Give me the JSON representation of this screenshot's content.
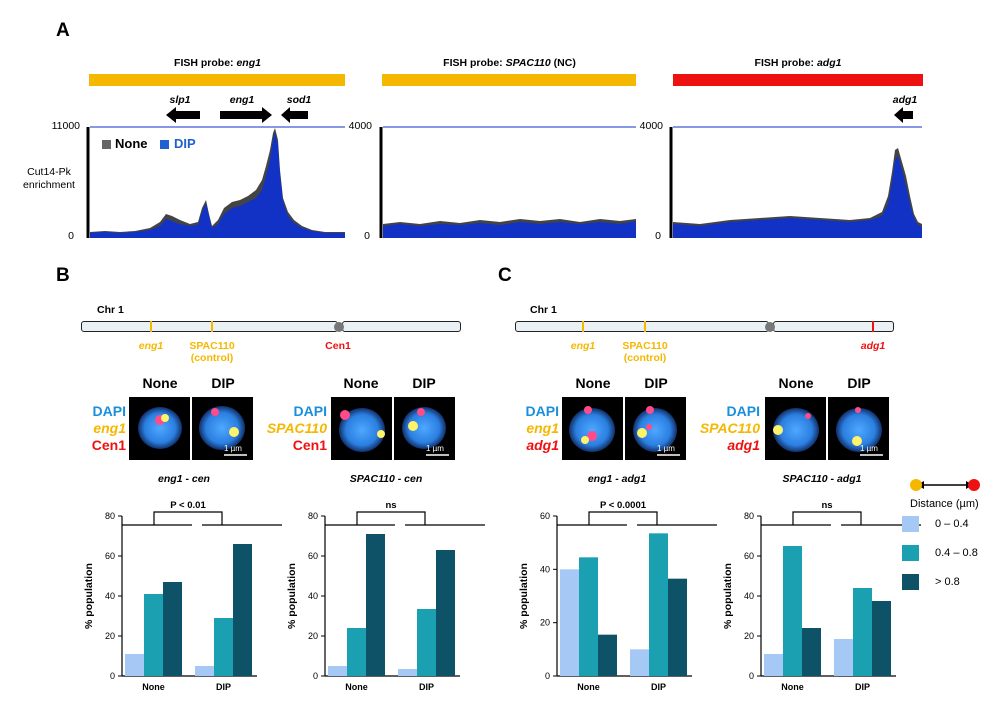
{
  "panel_labels": {
    "a": "A",
    "b": "B",
    "c": "C"
  },
  "colors": {
    "blue_track": "#1132c4",
    "grey_track": "#555555",
    "orange": "#f5b800",
    "red": "#ee1111",
    "light": "#a6c8f5",
    "mid": "#1aa0b0",
    "dark": "#0d5266"
  },
  "panel_a": {
    "ylabel": "Cut14-Pk\nenrichment",
    "legend": {
      "none": "None",
      "dip": "DIP"
    },
    "tracks": [
      {
        "title_prefix": "FISH probe: ",
        "title_italic": "eng1",
        "title_suffix": "",
        "ymax": "11000",
        "ymin": "0",
        "genes": [
          "slp1",
          "eng1",
          "sod1"
        ]
      },
      {
        "title_prefix": "FISH probe: ",
        "title_italic": "SPAC110",
        "title_suffix": " (NC)",
        "ymax": "4000",
        "ymin": "0",
        "genes": []
      },
      {
        "title_prefix": "FISH probe: ",
        "title_italic": "adg1",
        "title_suffix": "",
        "ymax": "4000",
        "ymin": "0",
        "genes": [
          "adg1"
        ]
      }
    ]
  },
  "panel_b": {
    "chr_label": "Chr 1",
    "chr_marks": {
      "eng1": "eng1",
      "spac": "SPAC110",
      "spac_sub": "(control)",
      "cen": "Cen1"
    },
    "col_headers": [
      "None",
      "DIP",
      "None",
      "DIP"
    ],
    "stains_left": [
      "DAPI",
      "eng1",
      "Cen1"
    ],
    "stains_right": [
      "DAPI",
      "SPAC110",
      "Cen1"
    ],
    "scalebar": "1 µm"
  },
  "panel_c": {
    "chr_label": "Chr 1",
    "chr_marks": {
      "eng1": "eng1",
      "spac": "SPAC110",
      "spac_sub": "(control)",
      "adg1": "adg1"
    },
    "col_headers": [
      "None",
      "DIP",
      "None",
      "DIP"
    ],
    "stains_left": [
      "DAPI",
      "eng1",
      "adg1"
    ],
    "stains_right": [
      "DAPI",
      "SPAC110",
      "adg1"
    ],
    "scalebar": "1 µm"
  },
  "legend": {
    "title": "Distance (µm)",
    "items": [
      "0 – 0.4",
      "0.4 – 0.8",
      "> 0.8"
    ]
  },
  "chart_data": [
    {
      "type": "bar",
      "title": "eng1 - cen",
      "ylabel": "% population",
      "categories": [
        "None",
        "DIP"
      ],
      "ylim": [
        0,
        80
      ],
      "yticks": [
        "0",
        "20",
        "40",
        "60",
        "80"
      ],
      "significance": "P < 0.01",
      "series": [
        {
          "name": "0 – 0.4",
          "values": [
            11,
            5
          ]
        },
        {
          "name": "0.4 – 0.8",
          "values": [
            41,
            29
          ]
        },
        {
          "name": "> 0.8",
          "values": [
            47,
            66
          ]
        }
      ]
    },
    {
      "type": "bar",
      "title": "SPAC110 - cen",
      "ylabel": "% population",
      "categories": [
        "None",
        "DIP"
      ],
      "ylim": [
        0,
        80
      ],
      "yticks": [
        "0",
        "20",
        "40",
        "60",
        "80"
      ],
      "significance": "ns",
      "series": [
        {
          "name": "0 – 0.4",
          "values": [
            5,
            3.5
          ]
        },
        {
          "name": "0.4 – 0.8",
          "values": [
            24,
            33.5
          ]
        },
        {
          "name": "> 0.8",
          "values": [
            71,
            63
          ]
        }
      ]
    },
    {
      "type": "bar",
      "title": "eng1 - adg1",
      "ylabel": "% population",
      "categories": [
        "None",
        "DIP"
      ],
      "ylim": [
        0,
        60
      ],
      "yticks": [
        "0",
        "20",
        "40",
        "60"
      ],
      "significance": "P < 0.0001",
      "series": [
        {
          "name": "0 – 0.4",
          "values": [
            40,
            10
          ]
        },
        {
          "name": "0.4 – 0.8",
          "values": [
            44.5,
            53.5
          ]
        },
        {
          "name": "> 0.8",
          "values": [
            15.5,
            36.5
          ]
        }
      ]
    },
    {
      "type": "bar",
      "title": "SPAC110 - adg1",
      "ylabel": "% population",
      "categories": [
        "None",
        "DIP"
      ],
      "ylim": [
        0,
        80
      ],
      "yticks": [
        "0",
        "20",
        "40",
        "60",
        "80"
      ],
      "significance": "ns",
      "series": [
        {
          "name": "0 – 0.4",
          "values": [
            11,
            18.5
          ]
        },
        {
          "name": "0.4 – 0.8",
          "values": [
            65,
            44
          ]
        },
        {
          "name": "> 0.8",
          "values": [
            24,
            37.5
          ]
        }
      ]
    }
  ]
}
